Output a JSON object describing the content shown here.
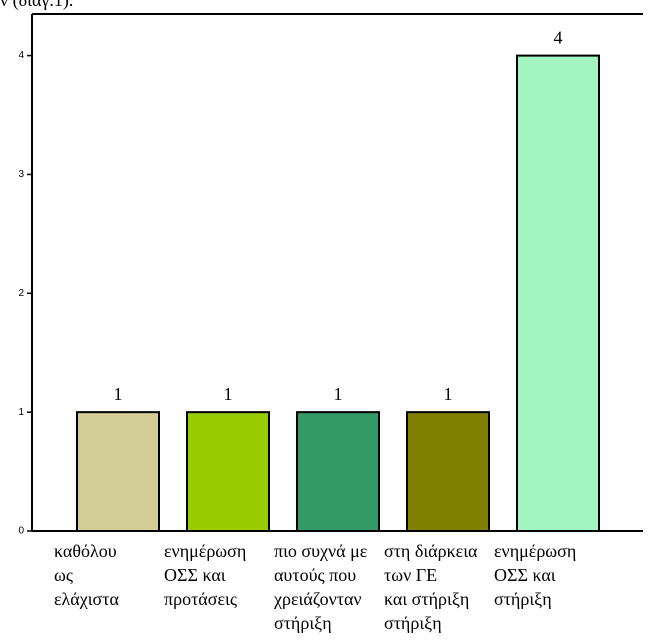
{
  "chart_data": {
    "type": "bar",
    "title": "ν (διαγ.1).",
    "categories": [
      [
        "καθόλου",
        "ως",
        "ελάχιστα"
      ],
      [
        "ενημέρωση",
        "ΟΣΣ  και",
        "προτάσεις"
      ],
      [
        "πιο συχνά με",
        "αυτούς που",
        "χρειάζονταν",
        "στήριξη"
      ],
      [
        "στη διάρκεια",
        "των ΓΕ",
        "και στήριξη",
        "στήριξη"
      ],
      [
        "ενημέρωση",
        "ΟΣΣ  και",
        "στήριξη"
      ]
    ],
    "values": [
      1,
      1,
      1,
      1,
      4
    ],
    "colors": [
      "#d3cd98",
      "#99cc00",
      "#339966",
      "#808000",
      "#a2f5c0"
    ],
    "ylim": [
      0,
      4.35
    ],
    "yticks": [
      0,
      1,
      2,
      3,
      4
    ],
    "grid": false
  }
}
